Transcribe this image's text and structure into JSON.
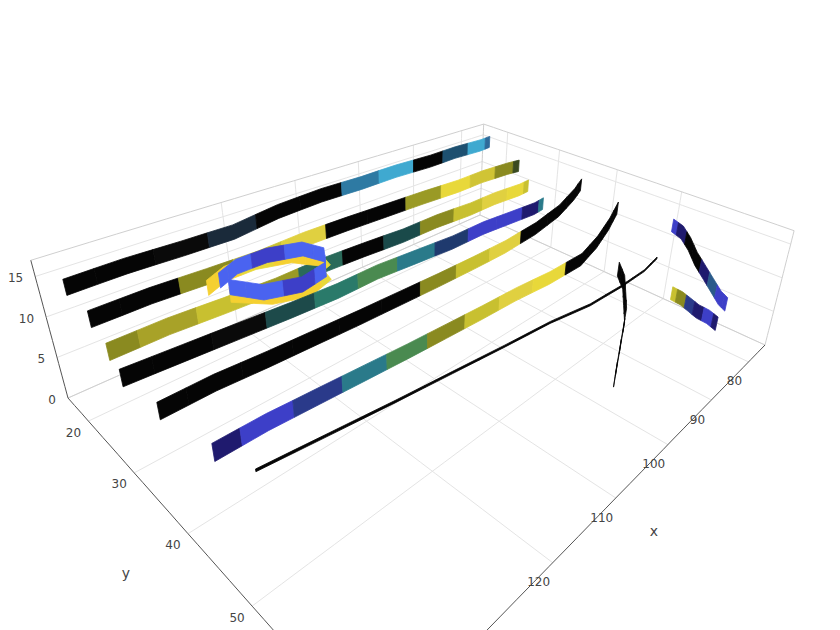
{
  "chart_data": {
    "type": "ribbon3d",
    "x_label": "x",
    "y_label": "y",
    "xlim": [
      75,
      140
    ],
    "ylim": [
      15,
      65
    ],
    "zlim": [
      0,
      17
    ],
    "xticks": [
      80,
      90,
      100,
      110,
      120
    ],
    "yticks": [
      20,
      30,
      40,
      50
    ],
    "zticks": [
      0,
      5,
      10,
      15
    ],
    "grid": true,
    "series": [
      {
        "x": [
          76,
          76,
          76.5,
          77,
          77,
          77.5,
          78,
          78
        ],
        "y": [
          50,
          51.5,
          53,
          54.5,
          56,
          57.5,
          59,
          60
        ],
        "z": [
          12,
          11.5,
          10.5,
          9,
          7.5,
          6.5,
          5.5,
          5
        ],
        "colors": [
          "#3d3fc8",
          "#1f1a6e",
          "#050505",
          "#050505",
          "#1f1a6e",
          "#2a5a8a",
          "#3d3fc8",
          "#3d3fc8"
        ]
      },
      {
        "x": [
          77,
          77,
          77.5,
          78,
          78,
          78.5
        ],
        "y": [
          52,
          53.5,
          55,
          56.5,
          58,
          59.5
        ],
        "z": [
          2.6,
          2.5,
          2.4,
          2.3,
          2.2,
          2.1
        ],
        "colors": [
          "#c8c030",
          "#8a8a20",
          "#2a3a8a",
          "#1f1a6e",
          "#3d3fc8",
          "#1f1a6e"
        ]
      },
      {
        "x": [
          138,
          132,
          126,
          120,
          114,
          108,
          102,
          96,
          90,
          85,
          80,
          78
        ],
        "y": [
          16,
          16,
          16.5,
          17,
          17,
          17.5,
          18,
          18,
          18.5,
          18.5,
          19,
          19
        ],
        "z": [
          13.2,
          13.3,
          13.4,
          13.6,
          14.4,
          15,
          15.2,
          15.3,
          15.4,
          15.5,
          15.6,
          15.7
        ],
        "colors": [
          "#050505",
          "#050505",
          "#0a0a0a",
          "#1a2a3a",
          "#050505",
          "#050505",
          "#2e7aa3",
          "#3fa9d0",
          "#050505",
          "#1d5070",
          "#3fa9d0",
          "#2e6a9a"
        ]
      },
      {
        "x": [
          138,
          132,
          126,
          120,
          114,
          108,
          102,
          96,
          90,
          85,
          80,
          78
        ],
        "y": [
          21,
          21,
          21.5,
          22,
          22,
          22.5,
          23,
          23.5,
          24,
          24,
          24.5,
          25
        ],
        "z": [
          11.6,
          11.7,
          11.8,
          12,
          12.3,
          12.6,
          12.8,
          13,
          13.1,
          13.2,
          13.3,
          13.4
        ],
        "colors": [
          "#050505",
          "#050505",
          "#8a8a20",
          "#c8c030",
          "#e0d040",
          "#050505",
          "#050505",
          "#9a9a25",
          "#e8d83a",
          "#d0c435",
          "#8a8a20",
          "#3a4a20"
        ]
      },
      {
        "x": [
          138,
          132,
          126,
          120,
          114,
          108,
          102,
          96,
          90,
          85,
          80,
          78
        ],
        "y": [
          24,
          24,
          24.5,
          25,
          25,
          25.5,
          26,
          26,
          26.5,
          26.5,
          27,
          27
        ],
        "z": [
          9.2,
          9.3,
          9.4,
          9.6,
          9.8,
          10,
          10.1,
          10.2,
          10.3,
          10.4,
          10.5,
          10.6
        ],
        "colors": [
          "#8a8a20",
          "#a8a228",
          "#c8c030",
          "#9a9a25",
          "#2a6a5a",
          "#050505",
          "#1a4a4a",
          "#8a8a20",
          "#c8c030",
          "#e0d040",
          "#e8d83a",
          "#c8c030"
        ]
      },
      {
        "x": [
          125,
          122,
          118,
          114,
          112,
          113,
          117,
          121,
          124
        ],
        "y": [
          19,
          17.5,
          17.5,
          19,
          22,
          25.5,
          27,
          25.5,
          22
        ],
        "z": [
          8.8,
          8.8,
          8.8,
          8.8,
          8.8,
          8.8,
          8.8,
          8.8,
          8.8
        ],
        "colors": [
          "#f5d031",
          "#f5d031",
          "#e8d83a",
          "#f5d031",
          "#f5d031",
          "#e8d83a",
          "#f5d031",
          "#f5d031",
          "#f5d031"
        ]
      },
      {
        "x": [
          124,
          121,
          117,
          113,
          112,
          114,
          118,
          122,
          124
        ],
        "y": [
          20,
          18.5,
          18.5,
          20,
          23,
          26,
          27,
          25.5,
          22
        ],
        "z": [
          9.8,
          9.8,
          9.8,
          9.8,
          9.8,
          9.8,
          9.8,
          9.8,
          9.8
        ],
        "colors": [
          "#4a63f0",
          "#4a63f0",
          "#3d3fc8",
          "#4a63f0",
          "#4a63f0",
          "#4a63f0",
          "#3d3fc8",
          "#4a63f0",
          "#4a63f0"
        ]
      },
      {
        "x": [
          138,
          132,
          126,
          120,
          114,
          108,
          102,
          96,
          90,
          85,
          80,
          78
        ],
        "y": [
          26,
          26.5,
          27,
          27.5,
          28,
          28,
          28.5,
          29,
          29,
          29.5,
          30,
          30
        ],
        "z": [
          7.2,
          7.3,
          7.4,
          7.5,
          7.7,
          7.9,
          8,
          8.1,
          8.2,
          8.3,
          8.4,
          8.6
        ],
        "colors": [
          "#050505",
          "#050505",
          "#0a0a0a",
          "#1d4a4a",
          "#2a7a6a",
          "#4a8a50",
          "#2a7a8a",
          "#1f3a6e",
          "#3d3fc8",
          "#3d3fc8",
          "#1f1a6e",
          "#2a7a8a"
        ]
      },
      {
        "x": [
          136,
          130,
          124,
          118,
          112,
          106,
          100,
          94,
          88,
          82,
          78,
          76,
          76
        ],
        "y": [
          28,
          28,
          28.5,
          29,
          29.5,
          30,
          30.5,
          31,
          31.5,
          32,
          33,
          34,
          35
        ],
        "z": [
          3.4,
          3.5,
          3.6,
          3.8,
          4,
          4.3,
          4.6,
          5,
          5.5,
          6.5,
          8.5,
          11,
          13
        ],
        "colors": [
          "#050505",
          "#050505",
          "#050505",
          "#050505",
          "#050505",
          "#050505",
          "#8a8a20",
          "#c8c030",
          "#e0d040",
          "#050505",
          "#050505",
          "#050505",
          "#050505"
        ]
      },
      {
        "x": [
          134,
          128,
          122,
          116,
          110,
          104,
          98,
          92,
          86,
          80,
          78,
          77,
          77
        ],
        "y": [
          34,
          34,
          34.5,
          35,
          35.5,
          36,
          36.5,
          37,
          38,
          39,
          40,
          41,
          42
        ],
        "z": [
          1,
          1,
          1.1,
          1.2,
          1.3,
          1.5,
          1.7,
          2,
          2.5,
          3.5,
          6,
          9,
          12
        ],
        "colors": [
          "#1f1a6e",
          "#3d3fc8",
          "#2a3a8a",
          "#2a7a8a",
          "#4a8a50",
          "#8a8a20",
          "#c8c030",
          "#e0d040",
          "#e8d83a",
          "#050505",
          "#050505",
          "#050505",
          "#050505"
        ]
      },
      {
        "x": [
          95,
          93,
          91,
          89,
          88,
          87,
          87
        ],
        "y": [
          55,
          54,
          53,
          52,
          51,
          50,
          49
        ],
        "z": [
          0,
          1.5,
          3,
          4.5,
          6,
          7.5,
          9
        ],
        "colors": [
          "#050505",
          "#050505",
          "#050505",
          "#050505",
          "#050505",
          "#050505",
          "#050505"
        ]
      },
      {
        "x": [
          132,
          124,
          116,
          108,
          100,
          92,
          86,
          82,
          80,
          79
        ],
        "y": [
          38,
          39,
          40,
          41,
          42,
          43,
          45,
          47,
          49,
          50
        ],
        "z": [
          0.2,
          0.2,
          0.2,
          0.3,
          0.4,
          0.6,
          1.5,
          3.5,
          6,
          8
        ],
        "colors": [
          "#050505",
          "#050505",
          "#050505",
          "#050505",
          "#050505",
          "#050505",
          "#050505",
          "#050505",
          "#050505",
          "#050505"
        ],
        "line_style": "thin"
      }
    ]
  }
}
